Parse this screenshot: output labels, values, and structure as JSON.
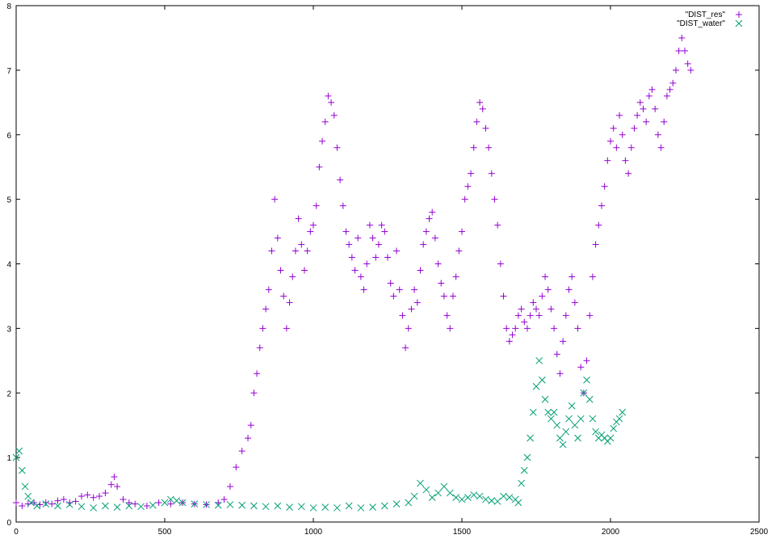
{
  "chart_data": {
    "type": "scatter",
    "xlim": [
      0,
      2500
    ],
    "ylim": [
      0,
      8
    ],
    "xticks": [
      "0",
      "500",
      "1000",
      "1500",
      "2000",
      "2500"
    ],
    "yticks": [
      "0",
      "1",
      "2",
      "3",
      "4",
      "5",
      "6",
      "7",
      "8"
    ],
    "grid": false,
    "legend_position": "top-right",
    "series": [
      {
        "name": "\"DIST_res\"",
        "marker": "plus",
        "color": "#9400d3",
        "points": [
          [
            0,
            0.3
          ],
          [
            20,
            0.25
          ],
          [
            40,
            0.28
          ],
          [
            60,
            0.3
          ],
          [
            80,
            0.27
          ],
          [
            100,
            0.3
          ],
          [
            120,
            0.28
          ],
          [
            140,
            0.33
          ],
          [
            160,
            0.35
          ],
          [
            180,
            0.3
          ],
          [
            200,
            0.32
          ],
          [
            220,
            0.4
          ],
          [
            240,
            0.42
          ],
          [
            260,
            0.38
          ],
          [
            280,
            0.4
          ],
          [
            300,
            0.45
          ],
          [
            320,
            0.58
          ],
          [
            330,
            0.7
          ],
          [
            340,
            0.55
          ],
          [
            360,
            0.35
          ],
          [
            380,
            0.3
          ],
          [
            400,
            0.28
          ],
          [
            440,
            0.25
          ],
          [
            480,
            0.3
          ],
          [
            520,
            0.28
          ],
          [
            560,
            0.3
          ],
          [
            600,
            0.28
          ],
          [
            640,
            0.27
          ],
          [
            680,
            0.3
          ],
          [
            700,
            0.35
          ],
          [
            720,
            0.55
          ],
          [
            740,
            0.85
          ],
          [
            760,
            1.1
          ],
          [
            780,
            1.3
          ],
          [
            790,
            1.5
          ],
          [
            800,
            2.0
          ],
          [
            810,
            2.3
          ],
          [
            820,
            2.7
          ],
          [
            830,
            3.0
          ],
          [
            840,
            3.3
          ],
          [
            850,
            3.6
          ],
          [
            860,
            4.2
          ],
          [
            870,
            5.0
          ],
          [
            880,
            4.4
          ],
          [
            890,
            3.9
          ],
          [
            900,
            3.5
          ],
          [
            910,
            3.0
          ],
          [
            920,
            3.4
          ],
          [
            930,
            3.8
          ],
          [
            940,
            4.2
          ],
          [
            950,
            4.7
          ],
          [
            960,
            4.3
          ],
          [
            970,
            3.9
          ],
          [
            980,
            4.2
          ],
          [
            990,
            4.5
          ],
          [
            1000,
            4.6
          ],
          [
            1010,
            4.9
          ],
          [
            1020,
            5.5
          ],
          [
            1030,
            5.9
          ],
          [
            1040,
            6.2
          ],
          [
            1050,
            6.6
          ],
          [
            1060,
            6.5
          ],
          [
            1070,
            6.3
          ],
          [
            1080,
            5.8
          ],
          [
            1090,
            5.3
          ],
          [
            1100,
            4.9
          ],
          [
            1110,
            4.5
          ],
          [
            1120,
            4.3
          ],
          [
            1130,
            4.1
          ],
          [
            1140,
            3.9
          ],
          [
            1150,
            4.4
          ],
          [
            1160,
            3.8
          ],
          [
            1170,
            3.6
          ],
          [
            1180,
            4.0
          ],
          [
            1190,
            4.6
          ],
          [
            1200,
            4.4
          ],
          [
            1210,
            4.1
          ],
          [
            1220,
            4.3
          ],
          [
            1230,
            4.6
          ],
          [
            1240,
            4.5
          ],
          [
            1250,
            4.1
          ],
          [
            1260,
            3.7
          ],
          [
            1270,
            3.5
          ],
          [
            1280,
            4.2
          ],
          [
            1290,
            3.6
          ],
          [
            1300,
            3.2
          ],
          [
            1310,
            2.7
          ],
          [
            1320,
            3.0
          ],
          [
            1330,
            3.3
          ],
          [
            1340,
            3.6
          ],
          [
            1350,
            3.4
          ],
          [
            1360,
            3.9
          ],
          [
            1370,
            4.3
          ],
          [
            1380,
            4.5
          ],
          [
            1390,
            4.7
          ],
          [
            1400,
            4.8
          ],
          [
            1410,
            4.4
          ],
          [
            1420,
            4.0
          ],
          [
            1430,
            3.7
          ],
          [
            1440,
            3.5
          ],
          [
            1450,
            3.2
          ],
          [
            1460,
            3.0
          ],
          [
            1470,
            3.5
          ],
          [
            1480,
            3.8
          ],
          [
            1490,
            4.2
          ],
          [
            1500,
            4.5
          ],
          [
            1510,
            5.0
          ],
          [
            1520,
            5.2
          ],
          [
            1530,
            5.4
          ],
          [
            1540,
            5.8
          ],
          [
            1550,
            6.2
          ],
          [
            1560,
            6.5
          ],
          [
            1570,
            6.4
          ],
          [
            1580,
            6.1
          ],
          [
            1590,
            5.8
          ],
          [
            1600,
            5.4
          ],
          [
            1610,
            5.0
          ],
          [
            1620,
            4.6
          ],
          [
            1630,
            4.0
          ],
          [
            1640,
            3.5
          ],
          [
            1650,
            3.0
          ],
          [
            1660,
            2.8
          ],
          [
            1670,
            2.9
          ],
          [
            1680,
            3.0
          ],
          [
            1690,
            3.2
          ],
          [
            1700,
            3.3
          ],
          [
            1710,
            3.1
          ],
          [
            1720,
            3.0
          ],
          [
            1730,
            3.2
          ],
          [
            1740,
            3.4
          ],
          [
            1750,
            3.3
          ],
          [
            1760,
            3.2
          ],
          [
            1770,
            3.5
          ],
          [
            1780,
            3.8
          ],
          [
            1790,
            3.6
          ],
          [
            1800,
            3.3
          ],
          [
            1810,
            3.0
          ],
          [
            1820,
            2.6
          ],
          [
            1830,
            2.3
          ],
          [
            1840,
            2.8
          ],
          [
            1850,
            3.2
          ],
          [
            1860,
            3.6
          ],
          [
            1870,
            3.8
          ],
          [
            1880,
            3.4
          ],
          [
            1890,
            3.0
          ],
          [
            1900,
            2.4
          ],
          [
            1910,
            2.0
          ],
          [
            1920,
            2.5
          ],
          [
            1930,
            3.2
          ],
          [
            1940,
            3.8
          ],
          [
            1950,
            4.3
          ],
          [
            1960,
            4.6
          ],
          [
            1970,
            4.9
          ],
          [
            1980,
            5.2
          ],
          [
            1990,
            5.6
          ],
          [
            2000,
            5.9
          ],
          [
            2010,
            6.1
          ],
          [
            2020,
            5.8
          ],
          [
            2030,
            6.3
          ],
          [
            2040,
            6.0
          ],
          [
            2050,
            5.6
          ],
          [
            2060,
            5.4
          ],
          [
            2070,
            5.8
          ],
          [
            2080,
            6.1
          ],
          [
            2090,
            6.3
          ],
          [
            2100,
            6.5
          ],
          [
            2110,
            6.4
          ],
          [
            2120,
            6.2
          ],
          [
            2130,
            6.6
          ],
          [
            2140,
            6.7
          ],
          [
            2150,
            6.4
          ],
          [
            2160,
            6.0
          ],
          [
            2170,
            5.8
          ],
          [
            2180,
            6.2
          ],
          [
            2190,
            6.6
          ],
          [
            2200,
            6.7
          ],
          [
            2210,
            6.8
          ],
          [
            2220,
            7.0
          ],
          [
            2230,
            7.3
          ],
          [
            2240,
            7.5
          ],
          [
            2250,
            7.3
          ],
          [
            2260,
            7.1
          ],
          [
            2270,
            7.0
          ]
        ]
      },
      {
        "name": "\"DIST_water\"",
        "marker": "cross",
        "color": "#009e73",
        "points": [
          [
            0,
            1.0
          ],
          [
            10,
            1.1
          ],
          [
            20,
            0.8
          ],
          [
            30,
            0.55
          ],
          [
            40,
            0.4
          ],
          [
            50,
            0.3
          ],
          [
            70,
            0.25
          ],
          [
            100,
            0.28
          ],
          [
            140,
            0.25
          ],
          [
            180,
            0.27
          ],
          [
            220,
            0.24
          ],
          [
            260,
            0.22
          ],
          [
            300,
            0.25
          ],
          [
            340,
            0.23
          ],
          [
            380,
            0.25
          ],
          [
            420,
            0.24
          ],
          [
            460,
            0.26
          ],
          [
            500,
            0.3
          ],
          [
            520,
            0.35
          ],
          [
            540,
            0.33
          ],
          [
            560,
            0.3
          ],
          [
            600,
            0.28
          ],
          [
            640,
            0.27
          ],
          [
            680,
            0.26
          ],
          [
            720,
            0.27
          ],
          [
            760,
            0.26
          ],
          [
            800,
            0.25
          ],
          [
            840,
            0.24
          ],
          [
            880,
            0.25
          ],
          [
            920,
            0.23
          ],
          [
            960,
            0.24
          ],
          [
            1000,
            0.22
          ],
          [
            1040,
            0.23
          ],
          [
            1080,
            0.22
          ],
          [
            1120,
            0.25
          ],
          [
            1160,
            0.22
          ],
          [
            1200,
            0.23
          ],
          [
            1240,
            0.25
          ],
          [
            1280,
            0.28
          ],
          [
            1320,
            0.3
          ],
          [
            1340,
            0.4
          ],
          [
            1360,
            0.6
          ],
          [
            1380,
            0.5
          ],
          [
            1400,
            0.38
          ],
          [
            1420,
            0.45
          ],
          [
            1440,
            0.55
          ],
          [
            1460,
            0.45
          ],
          [
            1480,
            0.38
          ],
          [
            1500,
            0.35
          ],
          [
            1520,
            0.38
          ],
          [
            1540,
            0.42
          ],
          [
            1560,
            0.4
          ],
          [
            1580,
            0.35
          ],
          [
            1600,
            0.33
          ],
          [
            1620,
            0.32
          ],
          [
            1640,
            0.4
          ],
          [
            1660,
            0.38
          ],
          [
            1680,
            0.35
          ],
          [
            1690,
            0.3
          ],
          [
            1700,
            0.6
          ],
          [
            1710,
            0.8
          ],
          [
            1720,
            1.0
          ],
          [
            1730,
            1.3
          ],
          [
            1740,
            1.7
          ],
          [
            1750,
            2.1
          ],
          [
            1760,
            2.5
          ],
          [
            1770,
            2.2
          ],
          [
            1780,
            1.9
          ],
          [
            1790,
            1.7
          ],
          [
            1800,
            1.6
          ],
          [
            1810,
            1.7
          ],
          [
            1820,
            1.5
          ],
          [
            1830,
            1.3
          ],
          [
            1840,
            1.2
          ],
          [
            1850,
            1.4
          ],
          [
            1860,
            1.6
          ],
          [
            1870,
            1.8
          ],
          [
            1880,
            1.5
          ],
          [
            1890,
            1.3
          ],
          [
            1900,
            1.6
          ],
          [
            1910,
            2.0
          ],
          [
            1920,
            2.2
          ],
          [
            1930,
            1.9
          ],
          [
            1940,
            1.6
          ],
          [
            1950,
            1.4
          ],
          [
            1960,
            1.3
          ],
          [
            1970,
            1.35
          ],
          [
            1980,
            1.3
          ],
          [
            1990,
            1.25
          ],
          [
            2000,
            1.3
          ],
          [
            2010,
            1.45
          ],
          [
            2020,
            1.55
          ],
          [
            2030,
            1.6
          ],
          [
            2040,
            1.7
          ]
        ]
      }
    ]
  }
}
